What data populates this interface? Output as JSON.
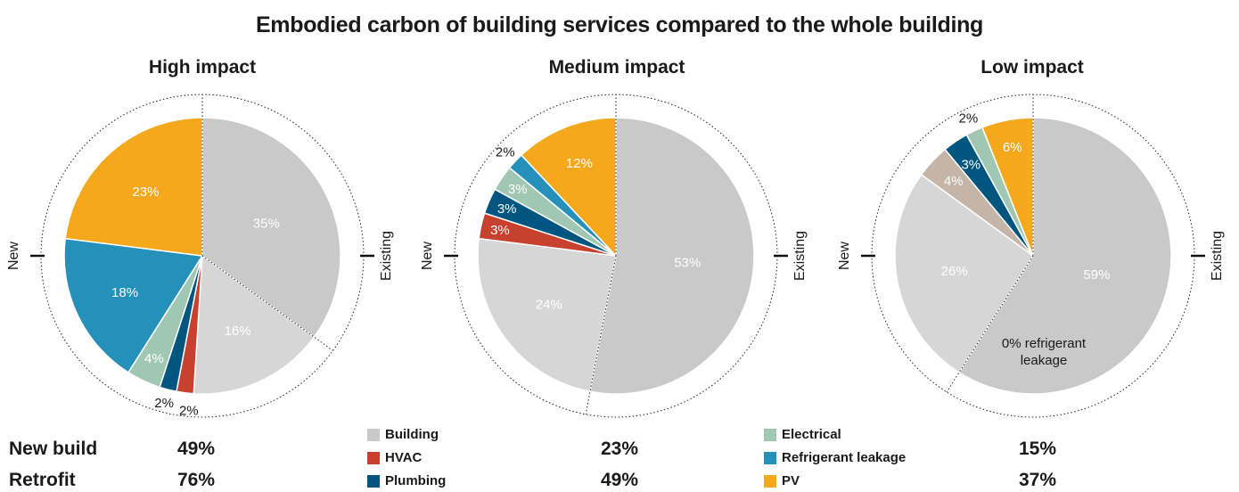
{
  "title": "Embodied carbon of building services compared to the whole building",
  "chart_data": [
    {
      "type": "pie",
      "title": "High impact",
      "side_labels": {
        "left": "New",
        "right": "Existing"
      },
      "slices": [
        {
          "category": "Building",
          "label": "35%",
          "value": 35,
          "color": "#c9c9c9",
          "group": "Existing"
        },
        {
          "category": "Building",
          "label": "16%",
          "value": 16,
          "color": "#d6d6d6",
          "group": "New"
        },
        {
          "category": "HVAC",
          "label": "2%",
          "value": 2,
          "color": "#c8412e",
          "group": "New"
        },
        {
          "category": "Plumbing",
          "label": "2%",
          "value": 2,
          "color": "#00567f",
          "group": "New"
        },
        {
          "category": "Electrical",
          "label": "4%",
          "value": 4,
          "color": "#9fc7b2",
          "group": "New"
        },
        {
          "category": "Refrigerant leakage",
          "label": "18%",
          "value": 18,
          "color": "#2591bb",
          "group": "New"
        },
        {
          "category": "PV",
          "label": "23%",
          "value": 23,
          "color": "#f5a81c",
          "group": "New"
        }
      ]
    },
    {
      "type": "pie",
      "title": "Medium impact",
      "side_labels": {
        "left": "New",
        "right": "Existing"
      },
      "slices": [
        {
          "category": "Building",
          "label": "53%",
          "value": 53,
          "color": "#c9c9c9",
          "group": "Existing"
        },
        {
          "category": "Building",
          "label": "24%",
          "value": 24,
          "color": "#d6d6d6",
          "group": "New"
        },
        {
          "category": "HVAC",
          "label": "3%",
          "value": 3,
          "color": "#c8412e",
          "group": "New"
        },
        {
          "category": "Plumbing",
          "label": "3%",
          "value": 3,
          "color": "#00567f",
          "group": "New"
        },
        {
          "category": "Electrical",
          "label": "3%",
          "value": 3,
          "color": "#9fc7b2",
          "group": "New"
        },
        {
          "category": "Refrigerant leakage",
          "label": "2%",
          "value": 2,
          "color": "#2591bb",
          "group": "New"
        },
        {
          "category": "PV",
          "label": "12%",
          "value": 12,
          "color": "#f5a81c",
          "group": "New"
        }
      ]
    },
    {
      "type": "pie",
      "title": "Low impact",
      "side_labels": {
        "left": "New",
        "right": "Existing"
      },
      "annotation": "0% refrigerant leakage",
      "slices": [
        {
          "category": "Building",
          "label": "59%",
          "value": 59,
          "color": "#c9c9c9",
          "group": "Existing"
        },
        {
          "category": "Building",
          "label": "26%",
          "value": 26,
          "color": "#d6d6d6",
          "group": "New"
        },
        {
          "category": "HVAC",
          "label": "4%",
          "value": 4,
          "color": "#c4b5a8",
          "group": "New"
        },
        {
          "category": "Plumbing",
          "label": "3%",
          "value": 3,
          "color": "#00567f",
          "group": "New"
        },
        {
          "category": "Electrical",
          "label": "2%",
          "value": 2,
          "color": "#9fc7b2",
          "group": "New"
        },
        {
          "category": "PV",
          "label": "6%",
          "value": 6,
          "color": "#f5a81c",
          "group": "New"
        }
      ]
    }
  ],
  "legend": [
    {
      "label": "Building",
      "color": "#c9c9c9"
    },
    {
      "label": "HVAC",
      "color": "#c8412e"
    },
    {
      "label": "Plumbing",
      "color": "#00567f"
    },
    {
      "label": "Electrical",
      "color": "#9fc7b2"
    },
    {
      "label": "Refrigerant leakage",
      "color": "#2591bb"
    },
    {
      "label": "PV",
      "color": "#f5a81c"
    }
  ],
  "summary": {
    "rows": [
      {
        "label": "New build",
        "values": [
          "49%",
          "23%",
          "15%"
        ]
      },
      {
        "label": "Retrofit",
        "values": [
          "76%",
          "49%",
          "37%"
        ]
      }
    ]
  }
}
